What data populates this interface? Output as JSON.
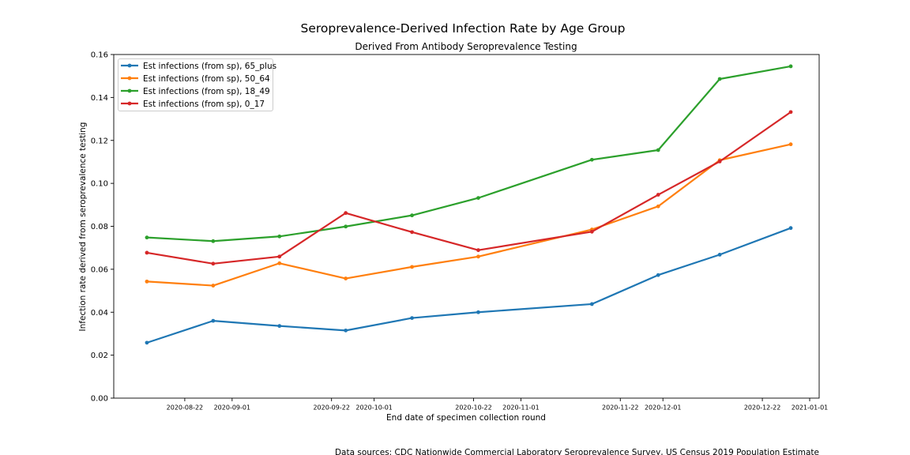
{
  "title": "Seroprevalence-Derived Infection Rate by Age Group",
  "subtitle": "Derived From Antibody Seroprevalence Testing",
  "footer": "Data sources: CDC Nationwide Commercial Laboratory Seroprevalence Survey, US Census 2019 Population Estimate",
  "chart_data": {
    "type": "line",
    "title": "Seroprevalence-Derived Infection Rate by Age Group",
    "subtitle": "Derived From Antibody Seroprevalence Testing",
    "xlabel": "End date of specimen collection round",
    "ylabel": "Infection rate derived from seroprevalence testing",
    "x_type": "date",
    "xlim": [
      "2020-08-07",
      "2021-01-03"
    ],
    "ylim": [
      0,
      0.16
    ],
    "x_ticks": [
      "2020-08-22",
      "2020-09-01",
      "2020-09-22",
      "2020-10-01",
      "2020-10-22",
      "2020-11-01",
      "2020-11-22",
      "2020-12-01",
      "2020-12-22",
      "2021-01-01"
    ],
    "y_ticks": [
      "0.00",
      "0.02",
      "0.04",
      "0.06",
      "0.08",
      "0.10",
      "0.12",
      "0.14",
      "0.16"
    ],
    "grid": false,
    "legend_position": "top-left",
    "series": [
      {
        "name": "Est infections (from sp), 65_plus",
        "color": "#1f77b4",
        "points": [
          [
            "2020-08-14",
            0.0258
          ],
          [
            "2020-08-28",
            0.036
          ],
          [
            "2020-09-11",
            0.0336
          ],
          [
            "2020-09-25",
            0.0315
          ],
          [
            "2020-10-09",
            0.0373
          ],
          [
            "2020-10-23",
            0.04
          ],
          [
            "2020-11-16",
            0.0438
          ],
          [
            "2020-11-30",
            0.0573
          ],
          [
            "2020-12-13",
            0.0668
          ],
          [
            "2020-12-28",
            0.0792
          ]
        ]
      },
      {
        "name": "Est infections (from sp), 50_64",
        "color": "#ff7f0e",
        "points": [
          [
            "2020-08-14",
            0.0543
          ],
          [
            "2020-08-28",
            0.0524
          ],
          [
            "2020-09-11",
            0.0628
          ],
          [
            "2020-09-25",
            0.0557
          ],
          [
            "2020-10-09",
            0.0611
          ],
          [
            "2020-10-23",
            0.0659
          ],
          [
            "2020-11-16",
            0.0785
          ],
          [
            "2020-11-30",
            0.0893
          ],
          [
            "2020-12-13",
            0.1108
          ],
          [
            "2020-12-28",
            0.1182
          ]
        ]
      },
      {
        "name": "Est infections (from sp), 18_49",
        "color": "#2ca02c",
        "points": [
          [
            "2020-08-14",
            0.0748
          ],
          [
            "2020-08-28",
            0.0731
          ],
          [
            "2020-09-11",
            0.0753
          ],
          [
            "2020-09-25",
            0.0799
          ],
          [
            "2020-10-09",
            0.0851
          ],
          [
            "2020-10-23",
            0.0932
          ],
          [
            "2020-11-16",
            0.111
          ],
          [
            "2020-11-30",
            0.1155
          ],
          [
            "2020-12-13",
            0.1486
          ],
          [
            "2020-12-28",
            0.1545
          ]
        ]
      },
      {
        "name": "Est infections (from sp), 0_17",
        "color": "#d62728",
        "points": [
          [
            "2020-08-14",
            0.0677
          ],
          [
            "2020-08-28",
            0.0626
          ],
          [
            "2020-09-11",
            0.0659
          ],
          [
            "2020-09-25",
            0.0862
          ],
          [
            "2020-10-09",
            0.0773
          ],
          [
            "2020-10-23",
            0.0689
          ],
          [
            "2020-11-16",
            0.0775
          ],
          [
            "2020-11-30",
            0.0947
          ],
          [
            "2020-12-13",
            0.1102
          ],
          [
            "2020-12-28",
            0.1332
          ]
        ]
      }
    ]
  }
}
